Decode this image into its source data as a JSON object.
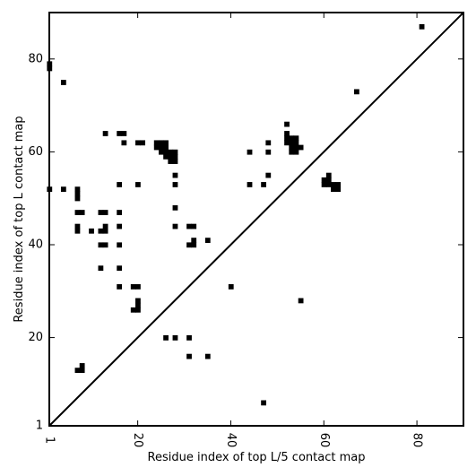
{
  "chart_data": {
    "type": "heatmap",
    "xlabel": "Residue index of top L/5 contact map",
    "ylabel": "Residue index of top L contact map",
    "xlim": [
      1,
      90
    ],
    "ylim": [
      1,
      90
    ],
    "x_ticks": [
      1,
      20,
      40,
      60,
      80
    ],
    "y_ticks": [
      1,
      20,
      40,
      60,
      80
    ],
    "x_tick_labels": [
      "1",
      "20",
      "40",
      "60",
      "80"
    ],
    "y_tick_labels": [
      "1",
      "20",
      "40",
      "60",
      "80"
    ],
    "grid": false,
    "legend": "none",
    "cell_color": "#000000",
    "diagonal": true,
    "cells": [
      [
        1,
        78
      ],
      [
        1,
        79
      ],
      [
        4,
        75
      ],
      [
        81,
        87
      ],
      [
        1,
        52
      ],
      [
        4,
        52
      ],
      [
        7,
        50
      ],
      [
        7,
        51
      ],
      [
        7,
        52
      ],
      [
        7,
        47
      ],
      [
        8,
        47
      ],
      [
        7,
        43
      ],
      [
        7,
        44
      ],
      [
        10,
        43
      ],
      [
        12,
        47
      ],
      [
        13,
        47
      ],
      [
        12,
        43
      ],
      [
        13,
        43
      ],
      [
        13,
        44
      ],
      [
        12,
        40
      ],
      [
        13,
        40
      ],
      [
        12,
        35
      ],
      [
        13,
        64
      ],
      [
        16,
        64
      ],
      [
        17,
        64
      ],
      [
        17,
        62
      ],
      [
        20,
        62
      ],
      [
        21,
        62
      ],
      [
        16,
        53
      ],
      [
        16,
        47
      ],
      [
        16,
        44
      ],
      [
        16,
        40
      ],
      [
        16,
        35
      ],
      [
        16,
        31
      ],
      [
        20,
        53
      ],
      [
        19,
        31
      ],
      [
        20,
        31
      ],
      [
        20,
        28
      ],
      [
        20,
        27
      ],
      [
        19,
        26
      ],
      [
        20,
        26
      ],
      [
        24,
        61
      ],
      [
        24,
        62
      ],
      [
        25,
        60
      ],
      [
        25,
        61
      ],
      [
        25,
        62
      ],
      [
        26,
        59
      ],
      [
        26,
        60
      ],
      [
        26,
        61
      ],
      [
        26,
        62
      ],
      [
        27,
        58
      ],
      [
        27,
        59
      ],
      [
        27,
        60
      ],
      [
        28,
        58
      ],
      [
        28,
        59
      ],
      [
        28,
        60
      ],
      [
        28,
        55
      ],
      [
        28,
        53
      ],
      [
        28,
        48
      ],
      [
        28,
        44
      ],
      [
        31,
        44
      ],
      [
        32,
        44
      ],
      [
        31,
        40
      ],
      [
        32,
        40
      ],
      [
        32,
        41
      ],
      [
        35,
        41
      ],
      [
        40,
        31
      ],
      [
        26,
        20
      ],
      [
        28,
        20
      ],
      [
        31,
        20
      ],
      [
        31,
        16
      ],
      [
        35,
        16
      ],
      [
        8,
        14
      ],
      [
        7,
        13
      ],
      [
        8,
        13
      ],
      [
        47,
        6
      ],
      [
        44,
        60
      ],
      [
        44,
        53
      ],
      [
        47,
        53
      ],
      [
        48,
        62
      ],
      [
        48,
        60
      ],
      [
        48,
        55
      ],
      [
        52,
        66
      ],
      [
        52,
        64
      ],
      [
        52,
        63
      ],
      [
        52,
        62
      ],
      [
        53,
        63
      ],
      [
        53,
        62
      ],
      [
        53,
        61
      ],
      [
        53,
        60
      ],
      [
        54,
        63
      ],
      [
        54,
        62
      ],
      [
        54,
        61
      ],
      [
        54,
        60
      ],
      [
        55,
        61
      ],
      [
        60,
        53
      ],
      [
        60,
        54
      ],
      [
        61,
        53
      ],
      [
        61,
        54
      ],
      [
        61,
        55
      ],
      [
        62,
        52
      ],
      [
        62,
        53
      ],
      [
        63,
        52
      ],
      [
        63,
        53
      ],
      [
        55,
        28
      ],
      [
        67,
        73
      ]
    ]
  }
}
